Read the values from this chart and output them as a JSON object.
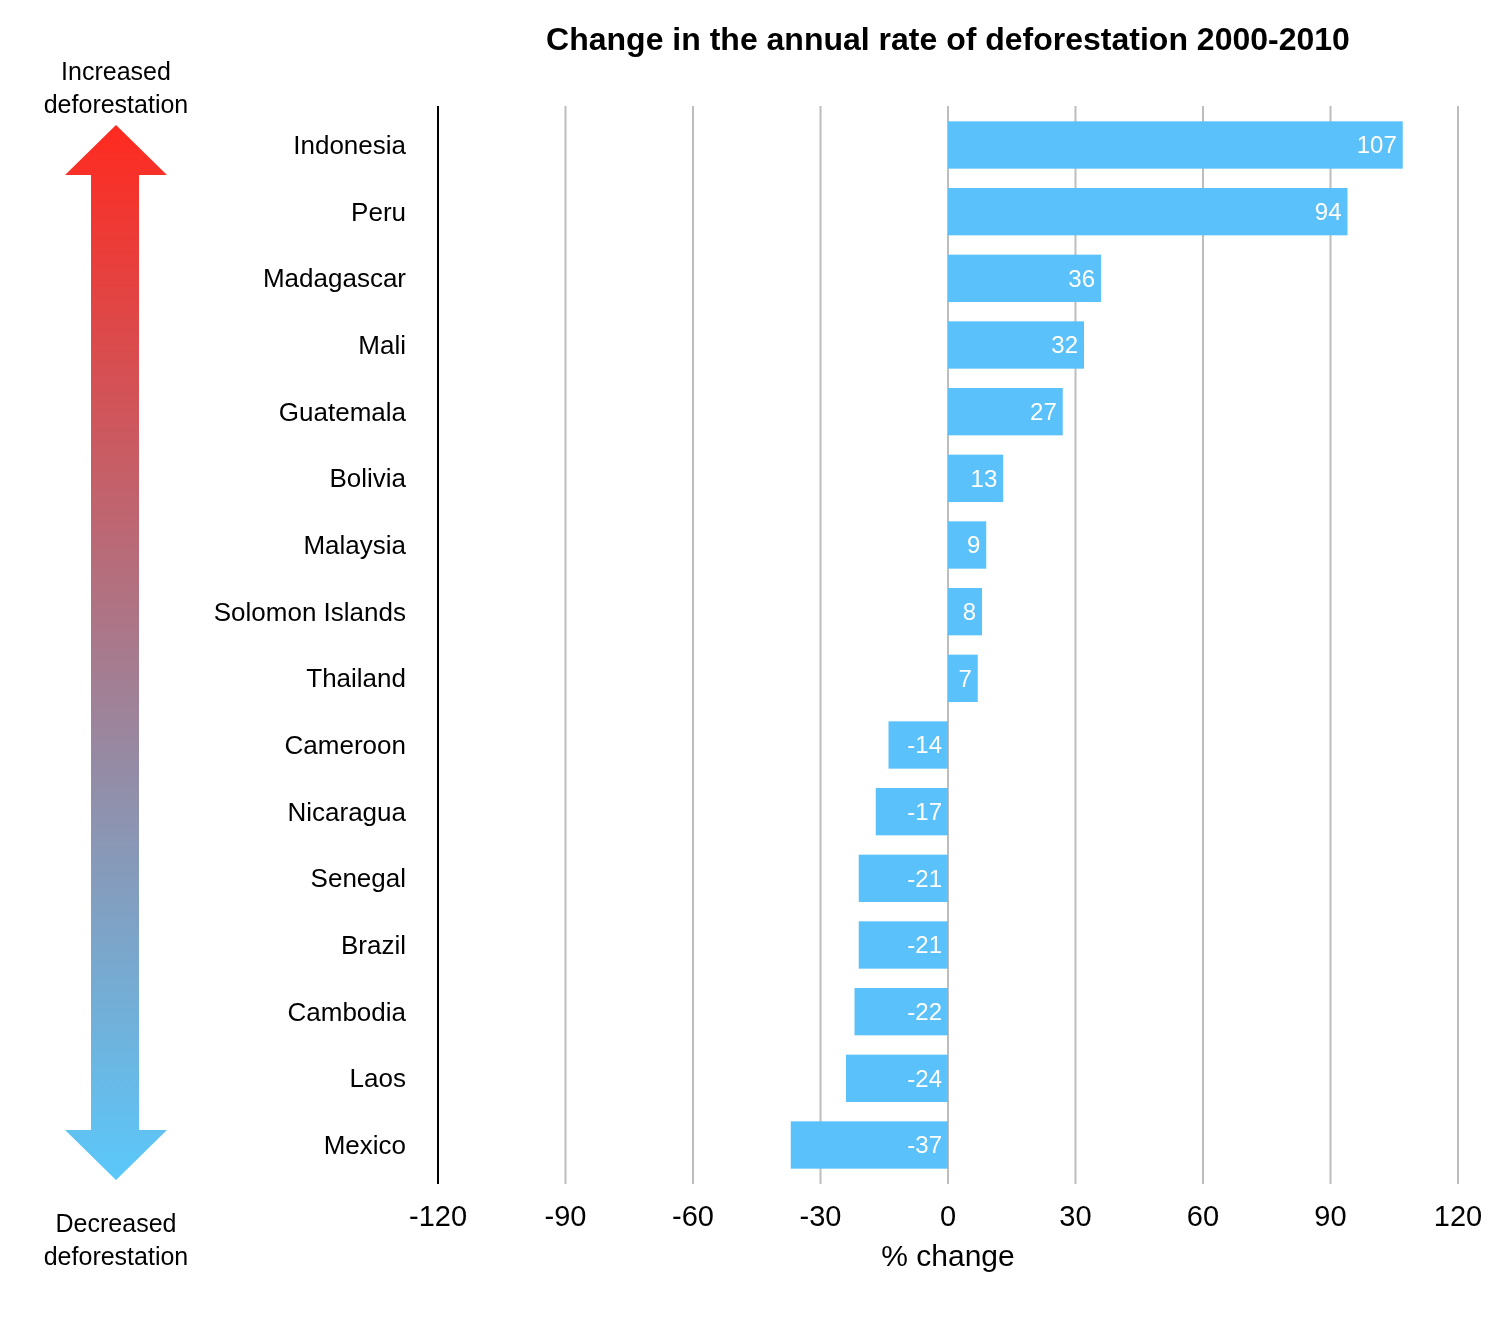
{
  "chart_data": {
    "type": "bar",
    "orientation": "horizontal",
    "title": "Change in the annual rate of deforestation 2000-2010",
    "xlabel": "% change",
    "categories": [
      "Indonesia",
      "Peru",
      "Madagascar",
      "Mali",
      "Guatemala",
      "Bolivia",
      "Malaysia",
      "Solomon Islands",
      "Thailand",
      "Cameroon",
      "Nicaragua",
      "Senegal",
      "Brazil",
      "Cambodia",
      "Laos",
      "Mexico"
    ],
    "values": [
      107,
      94,
      36,
      32,
      27,
      13,
      9,
      8,
      7,
      -14,
      -17,
      -21,
      -21,
      -22,
      -24,
      -37
    ],
    "color": "#5ac1fa",
    "xlim": [
      -120,
      120
    ],
    "xticks": [
      -120,
      -90,
      -60,
      -30,
      0,
      30,
      60,
      90,
      120
    ],
    "grid": "x",
    "data_labels": true,
    "annotations": [
      "Increased deforestation",
      "Decreased deforestation"
    ]
  }
}
